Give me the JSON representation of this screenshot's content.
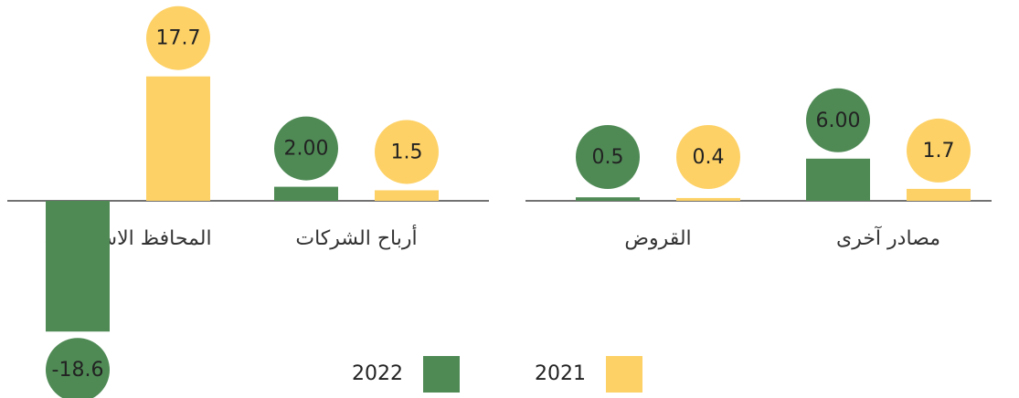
{
  "chart_data": {
    "type": "bar",
    "categories": [
      "المحافظ الاستثمارية",
      "أرباح الشركات",
      "القروض",
      "مصادر آخرى"
    ],
    "series": [
      {
        "name": "2022",
        "color": "#4f8a55",
        "values": [
          -18.6,
          2,
          0.5,
          6
        ],
        "value_labels": [
          "-18.6",
          "2.00",
          "0.5",
          "6.00"
        ]
      },
      {
        "name": "2021",
        "color": "#fdd166",
        "values": [
          17.7,
          1.5,
          0.4,
          1.7
        ]
      }
    ],
    "legend": "bottom"
  }
}
